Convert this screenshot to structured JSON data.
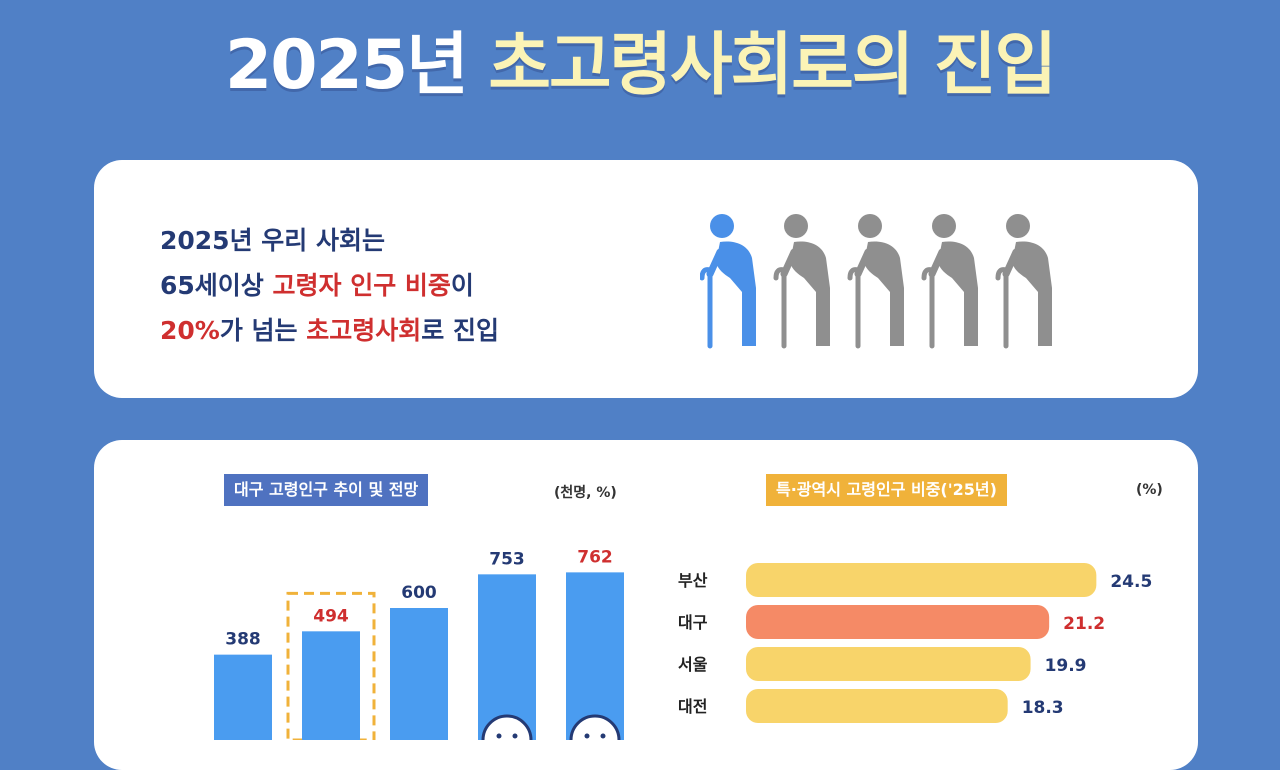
{
  "title": {
    "year_part": "2025년",
    "highlight_part": "초고령사회로의 진입"
  },
  "summary": {
    "line1": "2025년 우리 사회는",
    "line2_a": "65세이상 ",
    "line2_b": "고령자 인구 비중",
    "line2_c": "이",
    "line3_a": "20%",
    "line3_b": "가 넘는 ",
    "line3_c": "초고령사회",
    "line3_d": "로 진입"
  },
  "icons": {
    "elderly_figure_count": 5,
    "highlighted_count": 1,
    "highlight_color": "#4a90e8",
    "base_color": "#8f8f8f"
  },
  "colors": {
    "navy": "#243a74",
    "red": "#cf2f2f",
    "bar_blue": "#4a9cf0",
    "bar_yellow": "#f8d46a",
    "bar_coral": "#f58a66"
  },
  "chart_data": [
    {
      "type": "bar",
      "title": "대구 고령인구 추이 및 전망",
      "unit": "(천명, %)",
      "values": [
        388,
        494,
        600,
        753,
        762
      ],
      "highlight_index": 1,
      "red_labels": [
        1,
        4
      ]
    },
    {
      "type": "bar",
      "orientation": "horizontal",
      "title": "특·광역시 고령인구 비중('25년)",
      "unit": "(%)",
      "categories": [
        "부산",
        "대구",
        "서울",
        "대전"
      ],
      "values": [
        24.5,
        21.2,
        19.9,
        18.3
      ],
      "highlight_index": 1
    }
  ]
}
